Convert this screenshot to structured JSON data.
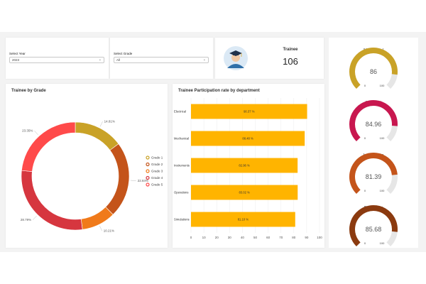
{
  "filters": {
    "year": {
      "label": "Select Year",
      "value": "2023"
    },
    "grade": {
      "label": "Select Grade",
      "value": "All"
    }
  },
  "kpi": {
    "label": "Trainee",
    "value": "106",
    "icon": "graduate-avatar-icon"
  },
  "colors": {
    "grade": [
      "#c9a227",
      "#c4541a",
      "#f07a1a",
      "#d6363f",
      "#ff4a4a"
    ],
    "bar": "#ffb400",
    "gauge_track": "#e6e6e6"
  },
  "chart_data": [
    {
      "type": "pie",
      "variant": "donut",
      "title": "Trainee by Grade",
      "categories": [
        "Grade 1",
        "Grade 2",
        "Grade 3",
        "Grade 4",
        "Grade 5"
      ],
      "values": [
        14.81,
        22.84,
        10.21,
        28.79,
        23.35
      ],
      "data_labels": [
        "14.81%",
        "22.84%",
        "10.21%",
        "28.79%",
        "23.35%"
      ],
      "legend_position": "right"
    },
    {
      "type": "bar",
      "orientation": "horizontal",
      "title": "Trainee Participation rate by department",
      "categories": [
        "Electrical",
        "Mechanical",
        "Instruments",
        "Operations",
        "Simulations"
      ],
      "values": [
        90.37,
        88.48,
        82.96,
        83.02,
        81.1
      ],
      "data_labels": [
        "90.37 %",
        "88.48 %",
        "82.96 %",
        "83.02 %",
        "81.10 %"
      ],
      "xlim": [
        0,
        100
      ],
      "xticks": [
        "0",
        "10",
        "20",
        "30",
        "40",
        "50",
        "60",
        "70",
        "80",
        "90",
        "100"
      ],
      "grid": true
    },
    {
      "type": "gauge",
      "gauges": [
        {
          "title": "Mechanical",
          "value": 86,
          "value_label": "86",
          "min": 0,
          "max": 100,
          "min_label": "0",
          "max_label": "100",
          "color": "#c9a227"
        },
        {
          "title": "Electrical",
          "value": 84.96,
          "value_label": "84.96",
          "min": 0,
          "max": 100,
          "min_label": "0",
          "max_label": "100",
          "color": "#c8174f"
        },
        {
          "title": "Instruments",
          "value": 81.39,
          "value_label": "81.39",
          "min": 0,
          "max": 100,
          "min_label": "0",
          "max_label": "100",
          "color": "#c4541a"
        },
        {
          "title": "Operations",
          "value": 85.68,
          "value_label": "85.68",
          "min": 0,
          "max": 100,
          "min_label": "0",
          "max_label": "100",
          "color": "#8b3a0f"
        }
      ]
    }
  ]
}
